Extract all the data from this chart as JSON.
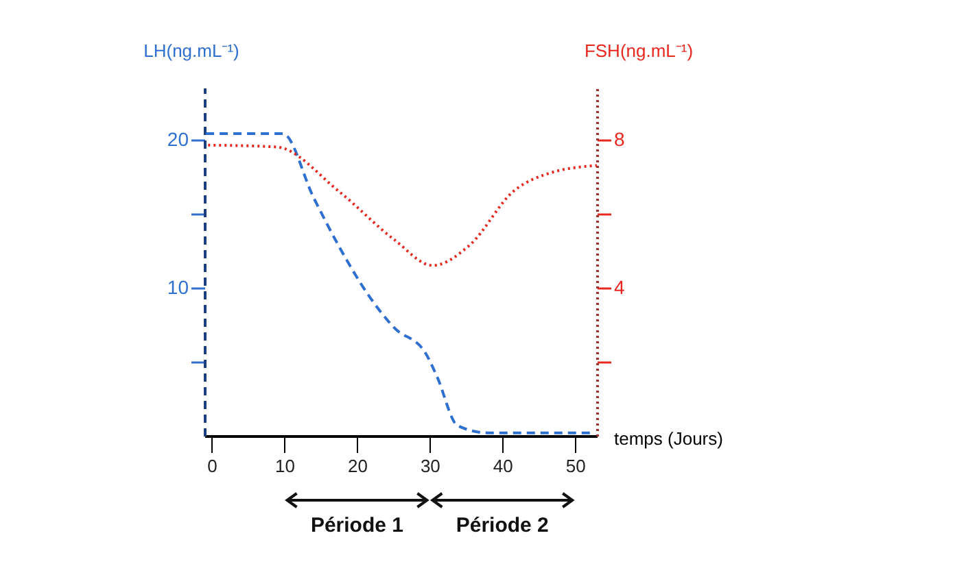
{
  "chart_data": {
    "type": "line",
    "xlabel": "temps (Jours)",
    "ylabel": "LH(ng.mL⁻¹)",
    "y2label": "FSH(ng.mL⁻¹)",
    "xlim": [
      -1,
      53
    ],
    "xticks": [
      0,
      10,
      20,
      30,
      40,
      50
    ],
    "ylim": [
      0,
      23.5
    ],
    "yticks": [
      {
        "value": 5,
        "label": null
      },
      10,
      {
        "value": 15,
        "label": null
      },
      20
    ],
    "y2lim": [
      0,
      9.4
    ],
    "y2ticks": [
      {
        "value": 2,
        "label": null
      },
      4,
      {
        "value": 6,
        "label": null
      },
      8
    ],
    "grid": false,
    "annotations": [
      "Période 1",
      "Période 2"
    ],
    "series": [
      {
        "color": "#2e6fd0",
        "line_style": "dashed",
        "x": [
          -0.8,
          9.8,
          14,
          17.5,
          21.7,
          25.1,
          29.4,
          31,
          33.8,
          38,
          52.6
        ],
        "values": [
          20.4,
          20.4,
          16.1,
          12.8,
          9.4,
          7.3,
          5.6,
          4.0,
          0.7,
          0.2,
          0.2
        ]
      },
      {
        "color": "#e8281e",
        "line_style": "dotted",
        "axis": "y2",
        "x": [
          -0.5,
          8.9,
          17.5,
          25.1,
          30.4,
          35.5,
          41.5,
          46.6,
          53
        ],
        "values": [
          7.85,
          7.8,
          6.6,
          5.3,
          4.6,
          5.15,
          6.6,
          7.1,
          7.3
        ]
      }
    ]
  }
}
